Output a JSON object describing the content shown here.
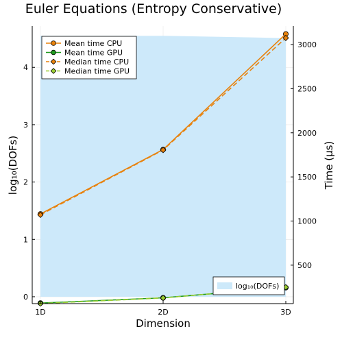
{
  "chart_data": {
    "type": "line",
    "title": "Euler Equations (Entropy Conservative)",
    "xlabel": "Dimension",
    "ylabel_left": "log₁₀(DOFs)",
    "ylabel_right": "Time (µs)",
    "categories": [
      "1D",
      "2D",
      "3D"
    ],
    "x_ticks": [
      "1D",
      "2D",
      "3D"
    ],
    "left_axis": {
      "ylim": [
        -0.12,
        4.72
      ],
      "ticks": [
        0,
        1,
        2,
        3,
        4
      ]
    },
    "right_axis": {
      "ylim": [
        64,
        3210
      ],
      "ticks": [
        500,
        1000,
        1500,
        2000,
        2500,
        3000
      ]
    },
    "area_series": {
      "name": "log₁₀(DOFs)",
      "axis": "left",
      "values": [
        4.55,
        4.55,
        4.51
      ],
      "color": "#cde9fa"
    },
    "series": [
      {
        "name": "Mean time CPU",
        "axis": "right",
        "values": [
          1080,
          1810,
          3120
        ],
        "color": "#e8820c",
        "marker": "circle",
        "dash": "solid"
      },
      {
        "name": "Mean time GPU",
        "axis": "right",
        "values": [
          70,
          130,
          245
        ],
        "color": "#1f9a1f",
        "marker": "circle",
        "dash": "solid"
      },
      {
        "name": "Median time CPU",
        "axis": "right",
        "values": [
          1070,
          1805,
          3075
        ],
        "color": "#e8820c",
        "marker": "diamond",
        "dash": "dashed"
      },
      {
        "name": "Median time GPU",
        "axis": "right",
        "values": [
          65,
          128,
          250
        ],
        "color": "#9acd32",
        "marker": "diamond",
        "dash": "dashed"
      }
    ],
    "legend_main": "top-left",
    "legend_area": "bottom-right",
    "grid": true
  }
}
